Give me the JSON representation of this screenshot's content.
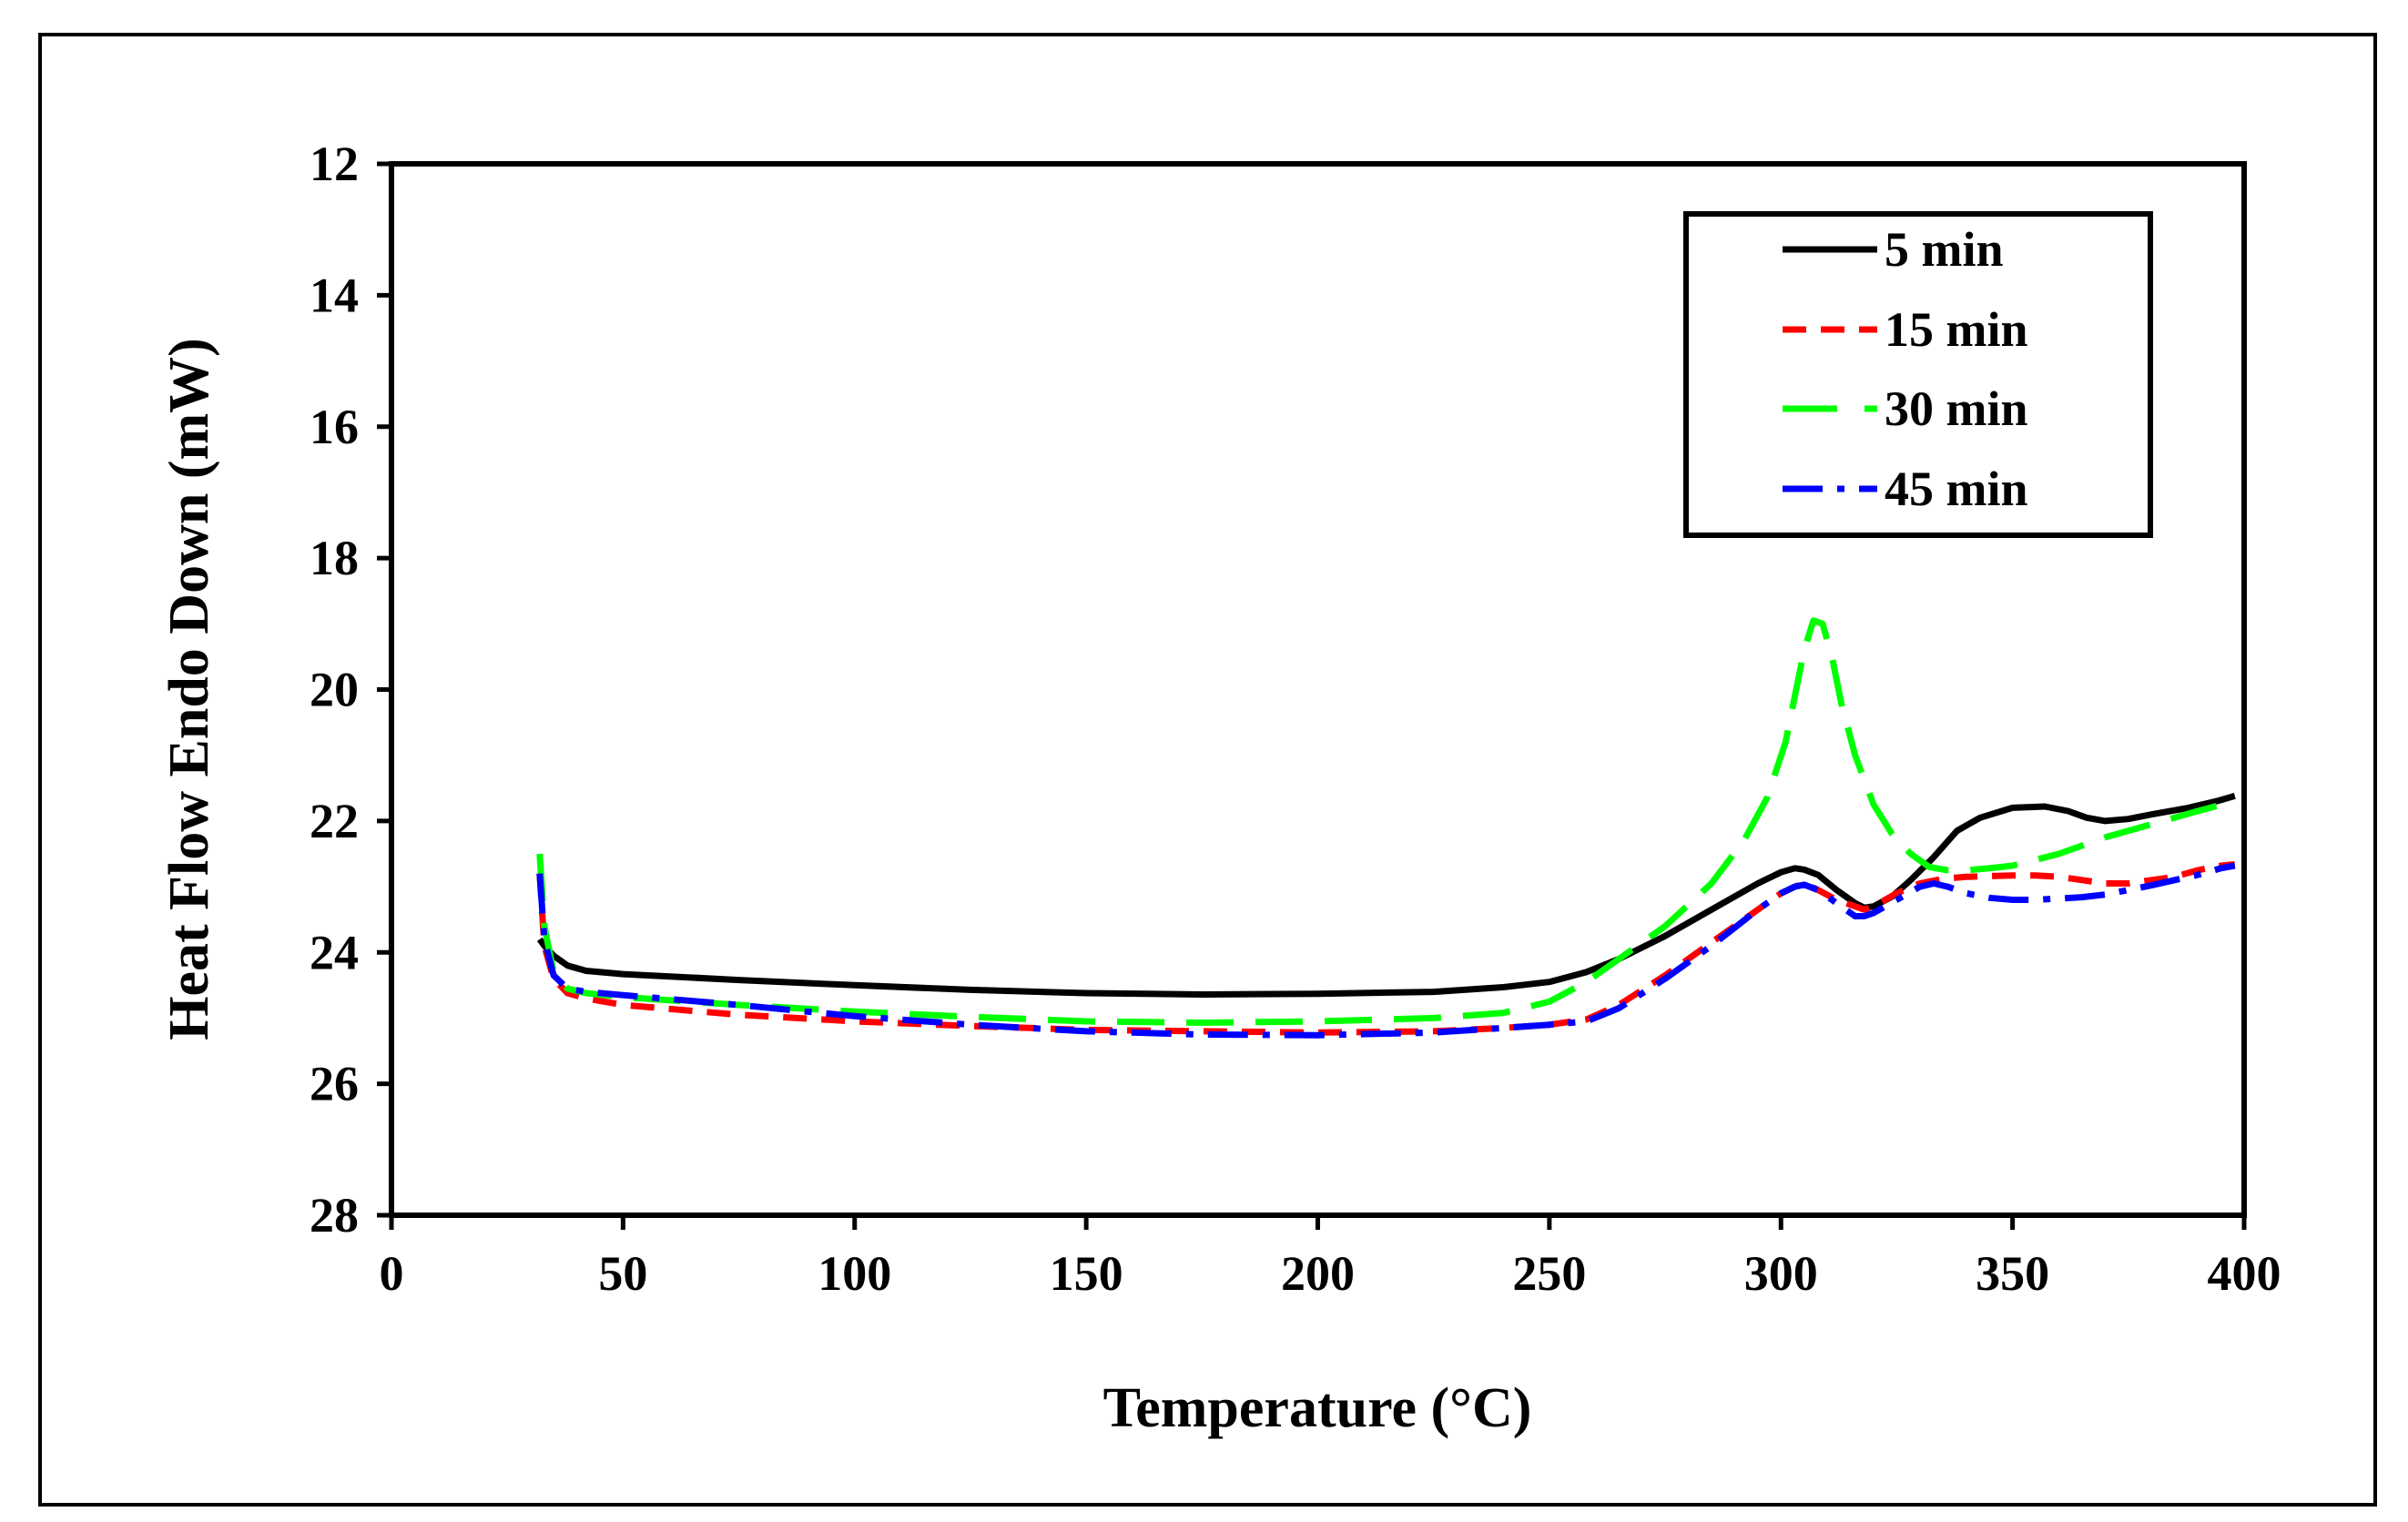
{
  "chart_data": {
    "type": "line",
    "title": "",
    "xlabel": "Temperature (°C)",
    "ylabel": "Heat Flow Endo Down (mW)",
    "xlim": [
      0,
      400
    ],
    "ylim": [
      12,
      28
    ],
    "y_inverted": true,
    "xticks": [
      0,
      50,
      100,
      150,
      200,
      250,
      300,
      350,
      400
    ],
    "yticks": [
      12,
      14,
      16,
      18,
      20,
      22,
      24,
      26,
      28
    ],
    "grid": false,
    "legend_position": "top-right",
    "series": [
      {
        "name": "5 min",
        "color": "#000000",
        "style": "solid",
        "x": [
          32,
          33,
          35,
          38,
          42,
          50,
          75,
          100,
          125,
          150,
          175,
          200,
          225,
          240,
          250,
          258,
          265,
          275,
          285,
          295,
          300,
          303,
          305,
          308,
          312,
          316,
          318,
          320,
          324,
          328,
          333,
          338,
          343,
          350,
          357,
          362,
          366,
          370,
          375,
          380,
          388,
          394,
          398
        ],
        "y": [
          23.8,
          23.9,
          24.05,
          24.2,
          24.28,
          24.33,
          24.42,
          24.5,
          24.57,
          24.62,
          24.64,
          24.63,
          24.6,
          24.53,
          24.45,
          24.3,
          24.1,
          23.75,
          23.35,
          22.95,
          22.78,
          22.72,
          22.74,
          22.82,
          23.05,
          23.25,
          23.32,
          23.3,
          23.15,
          22.9,
          22.55,
          22.15,
          21.95,
          21.8,
          21.78,
          21.85,
          21.95,
          22.0,
          21.97,
          21.9,
          21.8,
          21.7,
          21.62
        ]
      },
      {
        "name": "15 min",
        "color": "#ff0000",
        "style": "dashed",
        "x": [
          32,
          33,
          35,
          38,
          42,
          50,
          75,
          100,
          125,
          150,
          175,
          200,
          225,
          240,
          250,
          258,
          265,
          275,
          285,
          295,
          300,
          303,
          305,
          308,
          312,
          316,
          318,
          320,
          325,
          330,
          335,
          340,
          345,
          350,
          355,
          360,
          365,
          370,
          375,
          380,
          385,
          390,
          395,
          398
        ],
        "y": [
          22.8,
          23.9,
          24.4,
          24.62,
          24.7,
          24.8,
          24.95,
          25.05,
          25.12,
          25.18,
          25.2,
          25.22,
          25.2,
          25.15,
          25.1,
          25.02,
          24.8,
          24.35,
          23.85,
          23.35,
          23.1,
          23.0,
          22.95,
          23.05,
          23.2,
          23.3,
          23.35,
          23.3,
          23.1,
          22.95,
          22.88,
          22.85,
          22.84,
          22.83,
          22.83,
          22.85,
          22.9,
          22.95,
          22.95,
          22.9,
          22.85,
          22.75,
          22.68,
          22.66
        ]
      },
      {
        "name": "30 min",
        "color": "#00ff00",
        "style": "long-dashed",
        "x": [
          32,
          33,
          35,
          38,
          42,
          50,
          75,
          100,
          125,
          150,
          175,
          200,
          225,
          240,
          250,
          258,
          265,
          275,
          285,
          292,
          297,
          301,
          303,
          305,
          307,
          309,
          311,
          313,
          316,
          320,
          324,
          328,
          332,
          336,
          340,
          345,
          350,
          360,
          370,
          380,
          390,
          398
        ],
        "y": [
          22.5,
          23.6,
          24.3,
          24.55,
          24.62,
          24.68,
          24.8,
          24.9,
          24.98,
          25.05,
          25.07,
          25.05,
          25.0,
          24.92,
          24.75,
          24.45,
          24.1,
          23.6,
          22.95,
          22.3,
          21.65,
          20.8,
          20.1,
          19.4,
          18.95,
          19.0,
          19.5,
          20.2,
          21.0,
          21.75,
          22.2,
          22.5,
          22.7,
          22.75,
          22.75,
          22.72,
          22.68,
          22.5,
          22.25,
          22.05,
          21.85,
          21.7
        ]
      },
      {
        "name": "45 min",
        "color": "#0000ff",
        "style": "dash-dot",
        "x": [
          32,
          33,
          35,
          38,
          42,
          50,
          75,
          100,
          125,
          150,
          175,
          200,
          225,
          240,
          250,
          258,
          265,
          275,
          285,
          295,
          300,
          303,
          305,
          308,
          312,
          316,
          318,
          320,
          325,
          330,
          333,
          336,
          340,
          345,
          350,
          355,
          360,
          365,
          370,
          375,
          380,
          385,
          390,
          395,
          398
        ],
        "y": [
          22.8,
          23.8,
          24.35,
          24.55,
          24.6,
          24.65,
          24.8,
          24.97,
          25.1,
          25.2,
          25.25,
          25.26,
          25.22,
          25.15,
          25.1,
          25.05,
          24.85,
          24.4,
          23.9,
          23.35,
          23.1,
          23.0,
          22.97,
          23.05,
          23.25,
          23.45,
          23.45,
          23.4,
          23.2,
          23.0,
          22.95,
          23.0,
          23.1,
          23.17,
          23.2,
          23.2,
          23.18,
          23.16,
          23.12,
          23.05,
          22.98,
          22.9,
          22.82,
          22.72,
          22.68
        ]
      }
    ]
  }
}
